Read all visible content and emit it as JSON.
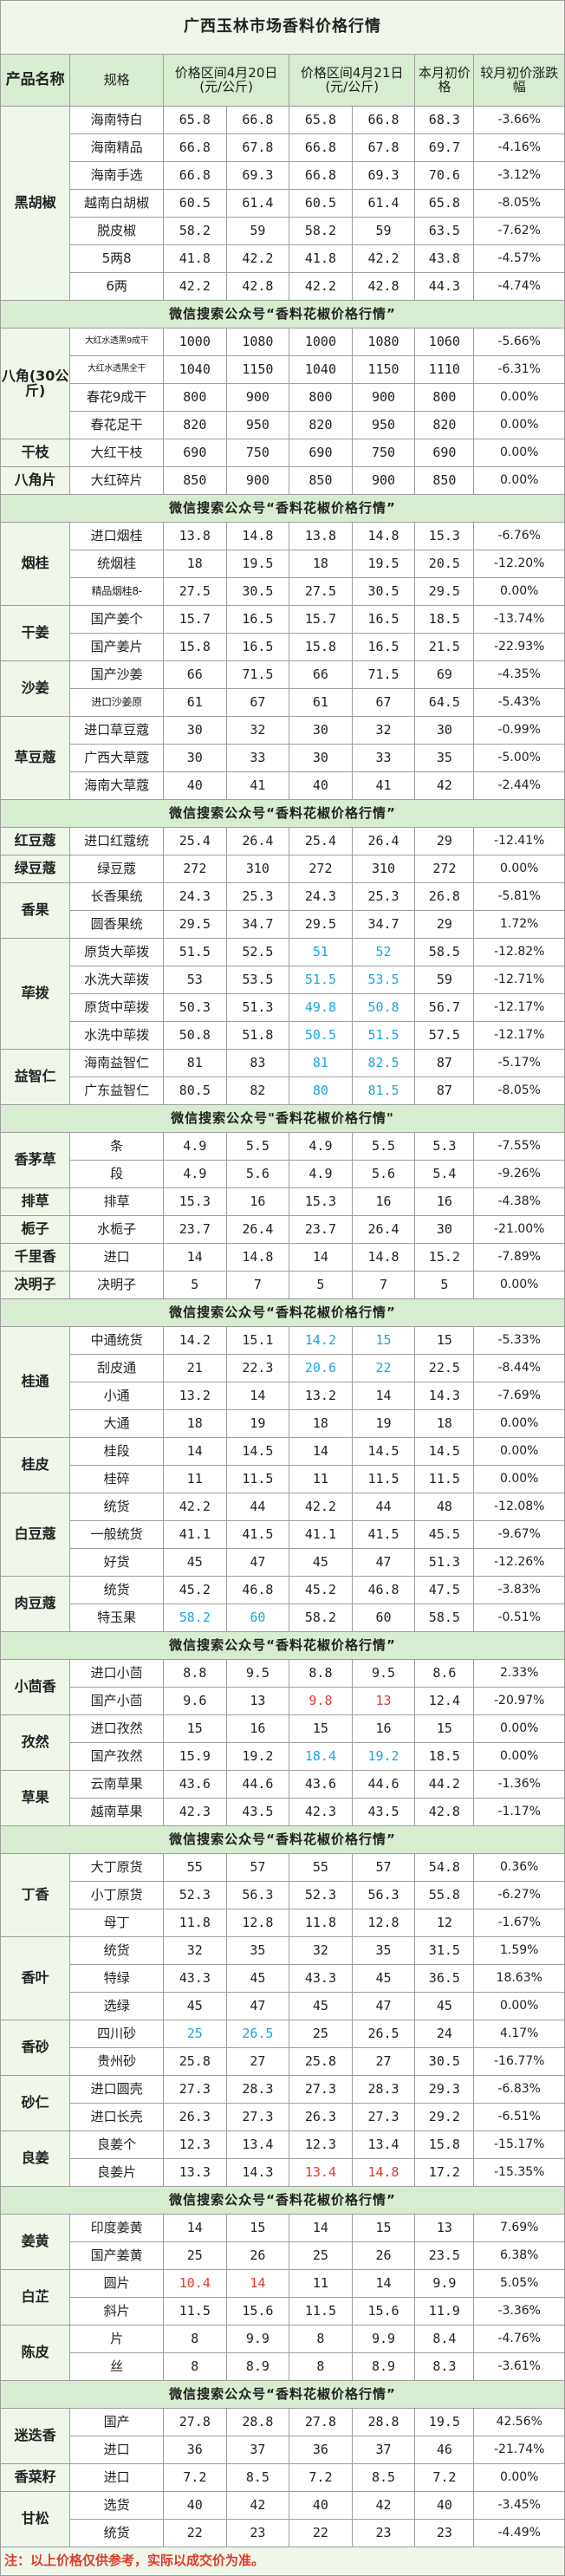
{
  "title": "广西玉林市场香料价格行情",
  "headers": {
    "name": "产品名称",
    "spec": "规格",
    "col_a": "价格区间4月20日(元/公斤)",
    "col_b": "价格区间4月21日(元/公斤)",
    "first": "本月初价格",
    "change": "较月初价涨跌幅"
  },
  "banner": "微信搜索公众号“香料花椒价格行情”",
  "banner_alt": "微信搜索公众号\"香料花椒价格行情\"",
  "footer": "注：以上价格仅供参考，实际以成交价为准。",
  "rows": [
    {
      "t": "title"
    },
    {
      "t": "header"
    },
    {
      "t": "data",
      "g": {
        "name": "黑胡椒",
        "span": 7
      },
      "s": "海南特白",
      "v": [
        "65.8",
        "66.8",
        "65.8",
        "66.8",
        "68.3",
        "-3.66%"
      ]
    },
    {
      "t": "data",
      "s": "海南精品",
      "v": [
        "66.8",
        "67.8",
        "66.8",
        "67.8",
        "69.7",
        "-4.16%"
      ]
    },
    {
      "t": "data",
      "s": "海南手选",
      "v": [
        "66.8",
        "69.3",
        "66.8",
        "69.3",
        "70.6",
        "-3.12%"
      ]
    },
    {
      "t": "data",
      "s": "越南白胡椒",
      "v": [
        "60.5",
        "61.4",
        "60.5",
        "61.4",
        "65.8",
        "-8.05%"
      ]
    },
    {
      "t": "data",
      "s": "脱皮椒",
      "v": [
        "58.2",
        "59",
        "58.2",
        "59",
        "63.5",
        "-7.62%"
      ]
    },
    {
      "t": "data",
      "s": "5两8",
      "v": [
        "41.8",
        "42.2",
        "41.8",
        "42.2",
        "43.8",
        "-4.57%"
      ]
    },
    {
      "t": "data",
      "s": "6两",
      "v": [
        "42.2",
        "42.8",
        "42.2",
        "42.8",
        "44.3",
        "-4.74%"
      ]
    },
    {
      "t": "banner"
    },
    {
      "t": "data",
      "g": {
        "name": "八角(30公斤)",
        "span": 4
      },
      "s": "大红水透黑9成干",
      "ss": "xs",
      "v": [
        "1000",
        "1080",
        "1000",
        "1080",
        "1060",
        "-5.66%"
      ]
    },
    {
      "t": "data",
      "s": "大红水透黑全干",
      "ss": "xs",
      "v": [
        "1040",
        "1150",
        "1040",
        "1150",
        "1110",
        "-6.31%"
      ]
    },
    {
      "t": "data",
      "s": "春花9成干",
      "v": [
        "800",
        "900",
        "800",
        "900",
        "800",
        "0.00%"
      ]
    },
    {
      "t": "data",
      "s": "春花足干",
      "v": [
        "820",
        "950",
        "820",
        "950",
        "820",
        "0.00%"
      ]
    },
    {
      "t": "data",
      "g": {
        "name": "干枝",
        "span": 1
      },
      "s": "大红干枝",
      "v": [
        "690",
        "750",
        "690",
        "750",
        "690",
        "0.00%"
      ]
    },
    {
      "t": "data",
      "g": {
        "name": "八角片",
        "span": 1
      },
      "s": "大红碎片",
      "v": [
        "850",
        "900",
        "850",
        "900",
        "850",
        "0.00%"
      ]
    },
    {
      "t": "banner"
    },
    {
      "t": "data",
      "g": {
        "name": "烟桂",
        "span": 3
      },
      "s": "进口烟桂",
      "v": [
        "13.8",
        "14.8",
        "13.8",
        "14.8",
        "15.3",
        "-6.76%"
      ]
    },
    {
      "t": "data",
      "s": "统烟桂",
      "v": [
        "18",
        "19.5",
        "18",
        "19.5",
        "20.5",
        "-12.20%"
      ]
    },
    {
      "t": "data",
      "s": "精品烟桂8-",
      "ss": "sm",
      "v": [
        "27.5",
        "30.5",
        "27.5",
        "30.5",
        "29.5",
        "0.00%"
      ]
    },
    {
      "t": "data",
      "g": {
        "name": "干姜",
        "span": 2
      },
      "s": "国产姜个",
      "v": [
        "15.7",
        "16.5",
        "15.7",
        "16.5",
        "18.5",
        "-13.74%"
      ]
    },
    {
      "t": "data",
      "s": "国产姜片",
      "v": [
        "15.8",
        "16.5",
        "15.8",
        "16.5",
        "21.5",
        "-22.93%"
      ]
    },
    {
      "t": "data",
      "g": {
        "name": "沙姜",
        "span": 2
      },
      "s": "国产沙姜",
      "v": [
        "66",
        "71.5",
        "66",
        "71.5",
        "69",
        "-4.35%"
      ]
    },
    {
      "t": "data",
      "s": "进口沙姜原",
      "ss": "sm",
      "v": [
        "61",
        "67",
        "61",
        "67",
        "64.5",
        "-5.43%"
      ]
    },
    {
      "t": "data",
      "g": {
        "name": "草豆蔻",
        "span": 3
      },
      "s": "进口草豆蔻",
      "v": [
        "30",
        "32",
        "30",
        "32",
        "30",
        "-0.99%"
      ]
    },
    {
      "t": "data",
      "s": "广西大草蔻",
      "v": [
        "30",
        "33",
        "30",
        "33",
        "35",
        "-5.00%"
      ]
    },
    {
      "t": "data",
      "s": "海南大草蔻",
      "v": [
        "40",
        "41",
        "40",
        "41",
        "42",
        "-2.44%"
      ]
    },
    {
      "t": "banner"
    },
    {
      "t": "data",
      "g": {
        "name": "红豆蔻",
        "span": 1
      },
      "s": "进口红蔻统",
      "v": [
        "25.4",
        "26.4",
        "25.4",
        "26.4",
        "29",
        "-12.41%"
      ]
    },
    {
      "t": "data",
      "g": {
        "name": "绿豆蔻",
        "span": 1
      },
      "s": "绿豆蔻",
      "v": [
        "272",
        "310",
        "272",
        "310",
        "272",
        "0.00%"
      ]
    },
    {
      "t": "data",
      "g": {
        "name": "香果",
        "span": 2
      },
      "s": "长香果统",
      "v": [
        "24.3",
        "25.3",
        "24.3",
        "25.3",
        "26.8",
        "-5.81%"
      ]
    },
    {
      "t": "data",
      "s": "圆香果统",
      "v": [
        "29.5",
        "34.7",
        "29.5",
        "34.7",
        "29",
        "1.72%"
      ]
    },
    {
      "t": "data",
      "g": {
        "name": "荜拨",
        "span": 4
      },
      "s": "原货大荜拨",
      "v": [
        "51.5",
        "52.5",
        "51",
        "52",
        "58.5",
        "-12.82%"
      ],
      "bl": [
        2,
        3
      ]
    },
    {
      "t": "data",
      "s": "水洗大荜拨",
      "v": [
        "53",
        "53.5",
        "51.5",
        "53.5",
        "59",
        "-12.71%"
      ],
      "bl": [
        2,
        3
      ]
    },
    {
      "t": "data",
      "s": "原货中荜拨",
      "v": [
        "50.3",
        "51.3",
        "49.8",
        "50.8",
        "56.7",
        "-12.17%"
      ],
      "bl": [
        2,
        3
      ]
    },
    {
      "t": "data",
      "s": "水洗中荜拨",
      "v": [
        "50.8",
        "51.8",
        "50.5",
        "51.5",
        "57.5",
        "-12.17%"
      ],
      "bl": [
        2,
        3
      ]
    },
    {
      "t": "data",
      "g": {
        "name": "益智仁",
        "span": 2
      },
      "s": "海南益智仁",
      "v": [
        "81",
        "83",
        "81",
        "82.5",
        "87",
        "-5.17%"
      ],
      "bl": [
        2,
        3
      ]
    },
    {
      "t": "data",
      "s": "广东益智仁",
      "v": [
        "80.5",
        "82",
        "80",
        "81.5",
        "87",
        "-8.05%"
      ],
      "bl": [
        2,
        3
      ]
    },
    {
      "t": "banner",
      "alt": true
    },
    {
      "t": "data",
      "g": {
        "name": "香茅草",
        "span": 2
      },
      "s": "条",
      "v": [
        "4.9",
        "5.5",
        "4.9",
        "5.5",
        "5.3",
        "-7.55%"
      ]
    },
    {
      "t": "data",
      "s": "段",
      "v": [
        "4.9",
        "5.6",
        "4.9",
        "5.6",
        "5.4",
        "-9.26%"
      ]
    },
    {
      "t": "data",
      "g": {
        "name": "排草",
        "span": 1
      },
      "s": "排草",
      "v": [
        "15.3",
        "16",
        "15.3",
        "16",
        "16",
        "-4.38%"
      ]
    },
    {
      "t": "data",
      "g": {
        "name": "栀子",
        "span": 1
      },
      "s": "水栀子",
      "v": [
        "23.7",
        "26.4",
        "23.7",
        "26.4",
        "30",
        "-21.00%"
      ]
    },
    {
      "t": "data",
      "g": {
        "name": "千里香",
        "span": 1
      },
      "s": "进口",
      "v": [
        "14",
        "14.8",
        "14",
        "14.8",
        "15.2",
        "-7.89%"
      ]
    },
    {
      "t": "data",
      "g": {
        "name": "决明子",
        "span": 1
      },
      "s": "决明子",
      "v": [
        "5",
        "7",
        "5",
        "7",
        "5",
        "0.00%"
      ]
    },
    {
      "t": "banner"
    },
    {
      "t": "data",
      "g": {
        "name": "桂通",
        "span": 4
      },
      "s": "中通统货",
      "v": [
        "14.2",
        "15.1",
        "14.2",
        "15",
        "15",
        "-5.33%"
      ],
      "bl": [
        2,
        3
      ]
    },
    {
      "t": "data",
      "s": "刮皮通",
      "v": [
        "21",
        "22.3",
        "20.6",
        "22",
        "22.5",
        "-8.44%"
      ],
      "bl": [
        2,
        3
      ]
    },
    {
      "t": "data",
      "s": "小通",
      "v": [
        "13.2",
        "14",
        "13.2",
        "14",
        "14.3",
        "-7.69%"
      ]
    },
    {
      "t": "data",
      "s": "大通",
      "v": [
        "18",
        "19",
        "18",
        "19",
        "18",
        "0.00%"
      ]
    },
    {
      "t": "data",
      "g": {
        "name": "桂皮",
        "span": 2
      },
      "s": "桂段",
      "v": [
        "14",
        "14.5",
        "14",
        "14.5",
        "14.5",
        "0.00%"
      ]
    },
    {
      "t": "data",
      "s": "桂碎",
      "v": [
        "11",
        "11.5",
        "11",
        "11.5",
        "11.5",
        "0.00%"
      ]
    },
    {
      "t": "data",
      "g": {
        "name": "白豆蔻",
        "span": 3
      },
      "s": "统货",
      "v": [
        "42.2",
        "44",
        "42.2",
        "44",
        "48",
        "-12.08%"
      ]
    },
    {
      "t": "data",
      "s": "一般统货",
      "v": [
        "41.1",
        "41.5",
        "41.1",
        "41.5",
        "45.5",
        "-9.67%"
      ]
    },
    {
      "t": "data",
      "s": "好货",
      "v": [
        "45",
        "47",
        "45",
        "47",
        "51.3",
        "-12.26%"
      ]
    },
    {
      "t": "data",
      "g": {
        "name": "肉豆蔻",
        "span": 2
      },
      "s": "统货",
      "v": [
        "45.2",
        "46.8",
        "45.2",
        "46.8",
        "47.5",
        "-3.83%"
      ]
    },
    {
      "t": "data",
      "s": "特玉果",
      "v": [
        "58.2",
        "60",
        "58.2",
        "60",
        "58.5",
        "-0.51%"
      ],
      "bl": [
        0,
        1
      ]
    },
    {
      "t": "banner"
    },
    {
      "t": "data",
      "g": {
        "name": "小茴香",
        "span": 2
      },
      "s": "进口小茴",
      "v": [
        "8.8",
        "9.5",
        "8.8",
        "9.5",
        "8.6",
        "2.33%"
      ]
    },
    {
      "t": "data",
      "s": "国产小茴",
      "v": [
        "9.6",
        "13",
        "9.8",
        "13",
        "12.4",
        "-20.97%"
      ],
      "rd": [
        2,
        3
      ]
    },
    {
      "t": "data",
      "g": {
        "name": "孜然",
        "span": 2
      },
      "s": "进口孜然",
      "v": [
        "15",
        "16",
        "15",
        "16",
        "15",
        "0.00%"
      ]
    },
    {
      "t": "data",
      "s": "国产孜然",
      "v": [
        "15.9",
        "19.2",
        "18.4",
        "19.2",
        "18.5",
        "0.00%"
      ],
      "bl": [
        2,
        3
      ]
    },
    {
      "t": "data",
      "g": {
        "name": "草果",
        "span": 2
      },
      "s": "云南草果",
      "v": [
        "43.6",
        "44.6",
        "43.6",
        "44.6",
        "44.2",
        "-1.36%"
      ]
    },
    {
      "t": "data",
      "s": "越南草果",
      "v": [
        "42.3",
        "43.5",
        "42.3",
        "43.5",
        "42.8",
        "-1.17%"
      ]
    },
    {
      "t": "banner"
    },
    {
      "t": "data",
      "g": {
        "name": "丁香",
        "span": 3
      },
      "s": "大丁原货",
      "v": [
        "55",
        "57",
        "55",
        "57",
        "54.8",
        "0.36%"
      ]
    },
    {
      "t": "data",
      "s": "小丁原货",
      "v": [
        "52.3",
        "56.3",
        "52.3",
        "56.3",
        "55.8",
        "-6.27%"
      ]
    },
    {
      "t": "data",
      "s": "母丁",
      "v": [
        "11.8",
        "12.8",
        "11.8",
        "12.8",
        "12",
        "-1.67%"
      ]
    },
    {
      "t": "data",
      "g": {
        "name": "香叶",
        "span": 3
      },
      "s": "统货",
      "v": [
        "32",
        "35",
        "32",
        "35",
        "31.5",
        "1.59%"
      ]
    },
    {
      "t": "data",
      "s": "特绿",
      "v": [
        "43.3",
        "45",
        "43.3",
        "45",
        "36.5",
        "18.63%"
      ]
    },
    {
      "t": "data",
      "s": "选绿",
      "v": [
        "45",
        "47",
        "45",
        "47",
        "45",
        "0.00%"
      ]
    },
    {
      "t": "data",
      "g": {
        "name": "香砂",
        "span": 2
      },
      "s": "四川砂",
      "v": [
        "25",
        "26.5",
        "25",
        "26.5",
        "24",
        "4.17%"
      ],
      "bl": [
        0,
        1
      ]
    },
    {
      "t": "data",
      "s": "贵州砂",
      "v": [
        "25.8",
        "27",
        "25.8",
        "27",
        "30.5",
        "-16.77%"
      ]
    },
    {
      "t": "data",
      "g": {
        "name": "砂仁",
        "span": 2
      },
      "s": "进口圆壳",
      "v": [
        "27.3",
        "28.3",
        "27.3",
        "28.3",
        "29.3",
        "-6.83%"
      ]
    },
    {
      "t": "data",
      "s": "进口长壳",
      "v": [
        "26.3",
        "27.3",
        "26.3",
        "27.3",
        "29.2",
        "-6.51%"
      ]
    },
    {
      "t": "data",
      "g": {
        "name": "良姜",
        "span": 2
      },
      "s": "良姜个",
      "v": [
        "12.3",
        "13.4",
        "12.3",
        "13.4",
        "15.8",
        "-15.17%"
      ]
    },
    {
      "t": "data",
      "s": "良姜片",
      "v": [
        "13.3",
        "14.3",
        "13.4",
        "14.8",
        "17.2",
        "-15.35%"
      ],
      "rd": [
        2,
        3
      ]
    },
    {
      "t": "banner"
    },
    {
      "t": "data",
      "g": {
        "name": "姜黄",
        "span": 2
      },
      "s": "印度姜黄",
      "v": [
        "14",
        "15",
        "14",
        "15",
        "13",
        "7.69%"
      ]
    },
    {
      "t": "data",
      "s": "国产姜黄",
      "v": [
        "25",
        "26",
        "25",
        "26",
        "23.5",
        "6.38%"
      ]
    },
    {
      "t": "data",
      "g": {
        "name": "白芷",
        "span": 2
      },
      "s": "圆片",
      "v": [
        "10.4",
        "14",
        "11",
        "14",
        "9.9",
        "5.05%"
      ],
      "rd": [
        0,
        1
      ]
    },
    {
      "t": "data",
      "s": "斜片",
      "v": [
        "11.5",
        "15.6",
        "11.5",
        "15.6",
        "11.9",
        "-3.36%"
      ]
    },
    {
      "t": "data",
      "g": {
        "name": "陈皮",
        "span": 2
      },
      "s": "片",
      "v": [
        "8",
        "9.9",
        "8",
        "9.9",
        "8.4",
        "-4.76%"
      ]
    },
    {
      "t": "data",
      "s": "丝",
      "v": [
        "8",
        "8.9",
        "8",
        "8.9",
        "8.3",
        "-3.61%"
      ]
    },
    {
      "t": "banner"
    },
    {
      "t": "data",
      "g": {
        "name": "迷迭香",
        "span": 2
      },
      "s": "国产",
      "v": [
        "27.8",
        "28.8",
        "27.8",
        "28.8",
        "19.5",
        "42.56%"
      ]
    },
    {
      "t": "data",
      "s": "进口",
      "v": [
        "36",
        "37",
        "36",
        "37",
        "46",
        "-21.74%"
      ]
    },
    {
      "t": "data",
      "g": {
        "name": "香菜籽",
        "span": 1
      },
      "s": "进口",
      "v": [
        "7.2",
        "8.5",
        "7.2",
        "8.5",
        "7.2",
        "0.00%"
      ]
    },
    {
      "t": "data",
      "g": {
        "name": "甘松",
        "span": 2
      },
      "s": "选货",
      "v": [
        "40",
        "42",
        "40",
        "42",
        "40",
        "-3.45%"
      ]
    },
    {
      "t": "data",
      "s": "统货",
      "v": [
        "22",
        "23",
        "22",
        "23",
        "23",
        "-4.49%"
      ]
    },
    {
      "t": "footer"
    }
  ]
}
